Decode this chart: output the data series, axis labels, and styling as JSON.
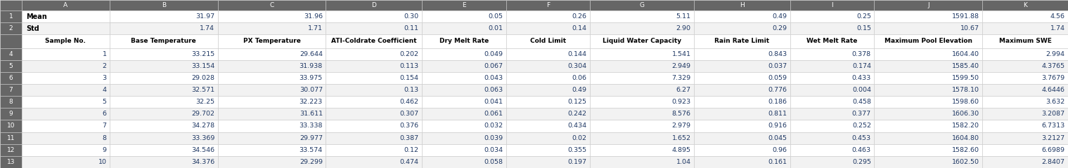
{
  "header_bg": "#666666",
  "header_fg": "#ffffff",
  "row_odd_bg": "#ffffff",
  "row_even_bg": "#f2f2f2",
  "row_num_bg": "#666666",
  "row_num_fg": "#ffffff",
  "data_fg": "#1f3864",
  "label_fg": "#000000",
  "header_col_row_bg": "#666666",
  "border_color": "#c8c8c8",
  "mean_row_bg": "#ffffff",
  "std_row_bg": "#f2f2f2",
  "col_header_bg": "#ffffff",
  "col_letters": [
    "",
    "A",
    "B",
    "C",
    "D",
    "E",
    "F",
    "G",
    "H",
    "I",
    "J",
    "K"
  ],
  "col_headers": [
    "Sample No.",
    "Base Temperature",
    "PX Temperature",
    "ATI-Coldrate Coefficient",
    "Dry Melt Rate",
    "Cold Limit",
    "Liquid Water Capacity",
    "Rain Rate Limit",
    "Wet Melt Rate",
    "Maximum Pool Elevation",
    "Maximum SWE"
  ],
  "mean_values": [
    "Mean",
    "31.97",
    "31.96",
    "0.30",
    "0.05",
    "0.26",
    "5.11",
    "0.49",
    "0.25",
    "1591.88",
    "4.56"
  ],
  "std_values": [
    "Std",
    "1.74",
    "1.71",
    "0.11",
    "0.01",
    "0.14",
    "2.90",
    "0.29",
    "0.15",
    "10.67",
    "1.74"
  ],
  "samples": [
    [
      "1",
      "33.215",
      "29.644",
      "0.202",
      "0.049",
      "0.144",
      "1.541",
      "0.843",
      "0.378",
      "1604.40",
      "2.994"
    ],
    [
      "2",
      "33.154",
      "31.938",
      "0.113",
      "0.067",
      "0.304",
      "2.949",
      "0.037",
      "0.174",
      "1585.40",
      "4.3765"
    ],
    [
      "3",
      "29.028",
      "33.975",
      "0.154",
      "0.043",
      "0.06",
      "7.329",
      "0.059",
      "0.433",
      "1599.50",
      "3.7679"
    ],
    [
      "4",
      "32.571",
      "30.077",
      "0.13",
      "0.063",
      "0.49",
      "6.27",
      "0.776",
      "0.004",
      "1578.10",
      "4.6446"
    ],
    [
      "5",
      "32.25",
      "32.223",
      "0.462",
      "0.041",
      "0.125",
      "0.923",
      "0.186",
      "0.458",
      "1598.60",
      "3.632"
    ],
    [
      "6",
      "29.702",
      "31.611",
      "0.307",
      "0.061",
      "0.242",
      "8.576",
      "0.811",
      "0.377",
      "1606.30",
      "3.2087"
    ],
    [
      "7",
      "34.278",
      "33.338",
      "0.376",
      "0.032",
      "0.434",
      "2.979",
      "0.916",
      "0.252",
      "1582.20",
      "6.7313"
    ],
    [
      "8",
      "33.369",
      "29.977",
      "0.387",
      "0.039",
      "0.02",
      "1.652",
      "0.045",
      "0.453",
      "1604.80",
      "3.2127"
    ],
    [
      "9",
      "34.546",
      "33.574",
      "0.12",
      "0.034",
      "0.355",
      "4.895",
      "0.96",
      "0.463",
      "1582.60",
      "6.6989"
    ],
    [
      "10",
      "34.376",
      "29.299",
      "0.474",
      "0.058",
      "0.197",
      "1.04",
      "0.161",
      "0.295",
      "1602.50",
      "2.8407"
    ]
  ],
  "row_nums_data": [
    "4",
    "5",
    "6",
    "7",
    "8",
    "9",
    "10",
    "11",
    "12",
    "13"
  ],
  "figsize": [
    15.19,
    2.4
  ],
  "dpi": 100
}
